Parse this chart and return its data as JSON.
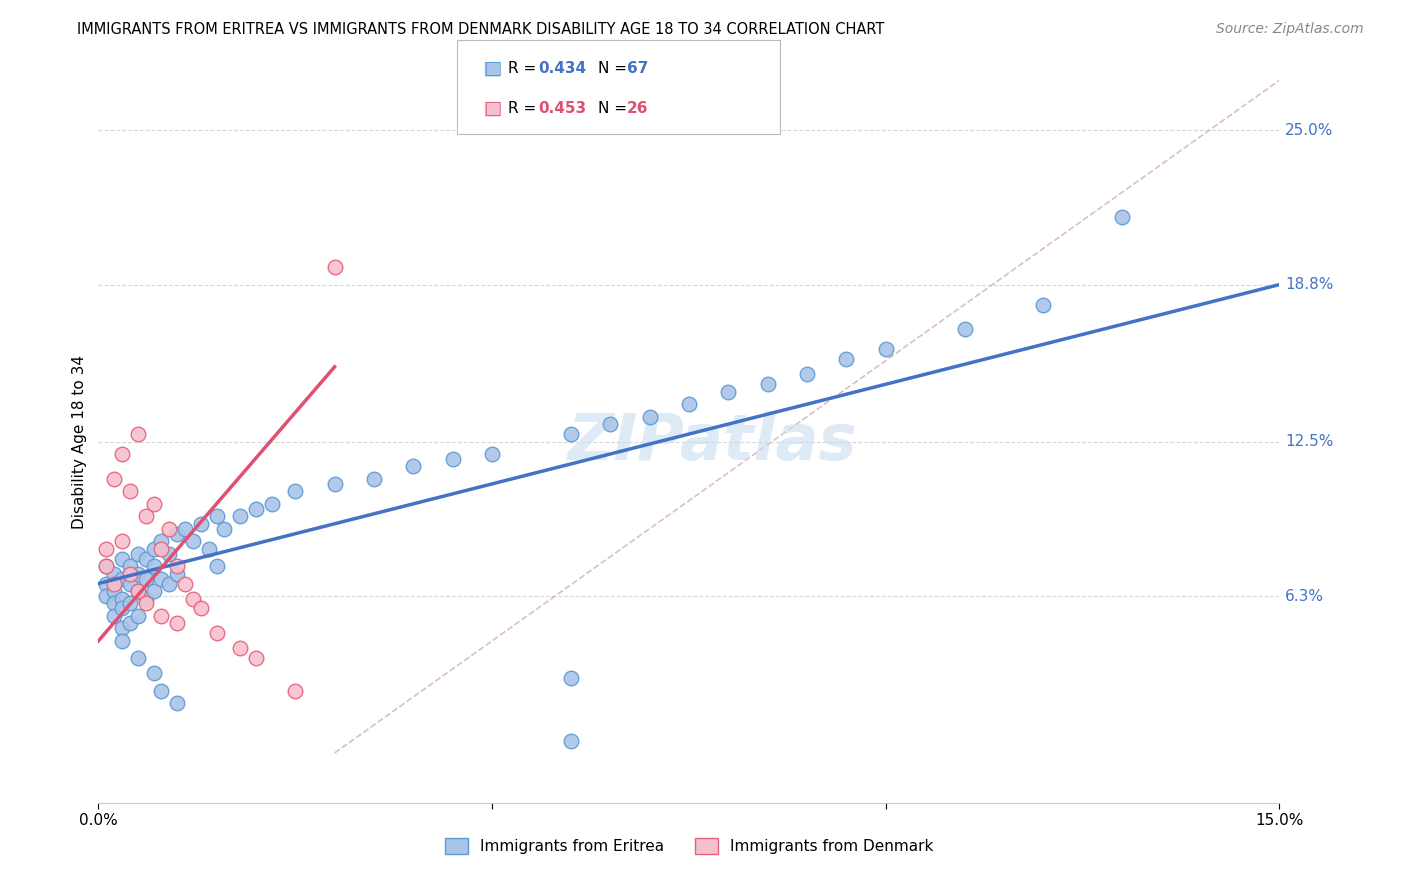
{
  "title": "IMMIGRANTS FROM ERITREA VS IMMIGRANTS FROM DENMARK DISABILITY AGE 18 TO 34 CORRELATION CHART",
  "source": "Source: ZipAtlas.com",
  "ylabel_label": "Disability Age 18 to 34",
  "x_min": 0.0,
  "x_max": 0.15,
  "y_min": -0.02,
  "y_max": 0.27,
  "x_ticks": [
    0.0,
    0.05,
    0.1,
    0.15
  ],
  "x_tick_labels": [
    "0.0%",
    "",
    "",
    "15.0%"
  ],
  "y_ticks_right": [
    0.063,
    0.125,
    0.188,
    0.25
  ],
  "y_tick_labels_right": [
    "6.3%",
    "12.5%",
    "18.8%",
    "25.0%"
  ],
  "color_eritrea_fill": "#aac4e8",
  "color_eritrea_edge": "#5b9bd5",
  "color_denmark_fill": "#f5c0cd",
  "color_denmark_edge": "#e8607a",
  "color_eritrea_line": "#4472c4",
  "color_denmark_line": "#e05070",
  "color_diagonal": "#d0b0b0",
  "watermark": "ZIPatlas",
  "watermark_color": "#c8ddf0",
  "eritrea_x": [
    0.001,
    0.001,
    0.001,
    0.002,
    0.002,
    0.002,
    0.002,
    0.003,
    0.003,
    0.003,
    0.003,
    0.003,
    0.004,
    0.004,
    0.004,
    0.004,
    0.005,
    0.005,
    0.005,
    0.005,
    0.006,
    0.006,
    0.006,
    0.007,
    0.007,
    0.007,
    0.008,
    0.008,
    0.009,
    0.009,
    0.01,
    0.01,
    0.011,
    0.012,
    0.013,
    0.014,
    0.015,
    0.015,
    0.016,
    0.018,
    0.02,
    0.022,
    0.025,
    0.03,
    0.035,
    0.04,
    0.045,
    0.05,
    0.06,
    0.065,
    0.07,
    0.075,
    0.08,
    0.085,
    0.09,
    0.095,
    0.1,
    0.11,
    0.12,
    0.13,
    0.003,
    0.005,
    0.007,
    0.008,
    0.01,
    0.06,
    0.06
  ],
  "eritrea_y": [
    0.075,
    0.068,
    0.063,
    0.072,
    0.065,
    0.06,
    0.055,
    0.078,
    0.07,
    0.062,
    0.058,
    0.05,
    0.075,
    0.068,
    0.06,
    0.052,
    0.08,
    0.072,
    0.065,
    0.055,
    0.078,
    0.07,
    0.062,
    0.082,
    0.075,
    0.065,
    0.085,
    0.07,
    0.08,
    0.068,
    0.088,
    0.072,
    0.09,
    0.085,
    0.092,
    0.082,
    0.095,
    0.075,
    0.09,
    0.095,
    0.098,
    0.1,
    0.105,
    0.108,
    0.11,
    0.115,
    0.118,
    0.12,
    0.128,
    0.132,
    0.135,
    0.14,
    0.145,
    0.148,
    0.152,
    0.158,
    0.162,
    0.17,
    0.18,
    0.215,
    0.045,
    0.038,
    0.032,
    0.025,
    0.02,
    0.03,
    0.005
  ],
  "denmark_x": [
    0.001,
    0.001,
    0.002,
    0.002,
    0.003,
    0.003,
    0.004,
    0.004,
    0.005,
    0.005,
    0.006,
    0.006,
    0.007,
    0.008,
    0.008,
    0.009,
    0.01,
    0.01,
    0.011,
    0.012,
    0.013,
    0.015,
    0.018,
    0.02,
    0.025,
    0.03
  ],
  "denmark_y": [
    0.082,
    0.075,
    0.11,
    0.068,
    0.12,
    0.085,
    0.105,
    0.072,
    0.128,
    0.065,
    0.095,
    0.06,
    0.1,
    0.082,
    0.055,
    0.09,
    0.075,
    0.052,
    0.068,
    0.062,
    0.058,
    0.048,
    0.042,
    0.038,
    0.025,
    0.195
  ],
  "eritrea_line_x": [
    0.0,
    0.15
  ],
  "eritrea_line_y": [
    0.068,
    0.188
  ],
  "denmark_line_x": [
    0.0,
    0.03
  ],
  "denmark_line_y": [
    0.045,
    0.155
  ]
}
